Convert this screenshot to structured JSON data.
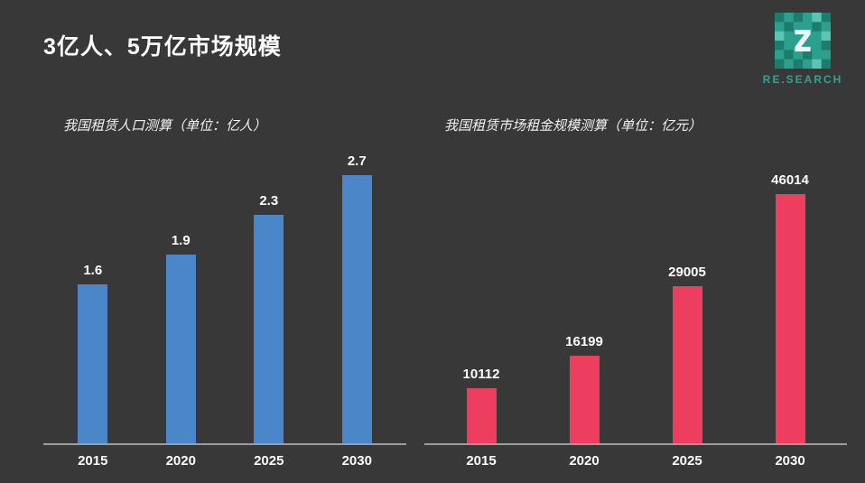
{
  "page": {
    "title": "3亿人、5万亿市场规模",
    "logo": {
      "brand": "RE.SEARCH"
    },
    "colors": {
      "background": "#383838",
      "text": "#ffffff",
      "accent_teal": "#2fa391",
      "bar_blue": "#4a86c8",
      "bar_pink": "#ee3e60",
      "axis": "#9d9d9d"
    }
  },
  "chart_data": [
    {
      "type": "bar",
      "title": "我国租赁人口测算（单位：亿人）",
      "categories": [
        "2015",
        "2020",
        "2025",
        "2030"
      ],
      "values": [
        1.6,
        1.9,
        2.3,
        2.7
      ],
      "labels": [
        "1.6",
        "1.9",
        "2.3",
        "2.7"
      ],
      "xlabel": "",
      "ylabel": "",
      "ylim": [
        0,
        3
      ],
      "grid": false,
      "legend": "none",
      "bar_color": "#4a86c8"
    },
    {
      "type": "bar",
      "title": "我国租赁市场租金规模测算（单位：亿元）",
      "categories": [
        "2015",
        "2020",
        "2025",
        "2030"
      ],
      "values": [
        10112,
        16199,
        29005,
        46014
      ],
      "labels": [
        "10112",
        "16199",
        "29005",
        "46014"
      ],
      "xlabel": "",
      "ylabel": "",
      "ylim": [
        0,
        55000
      ],
      "grid": false,
      "legend": "none",
      "bar_color": "#ee3e60"
    }
  ]
}
